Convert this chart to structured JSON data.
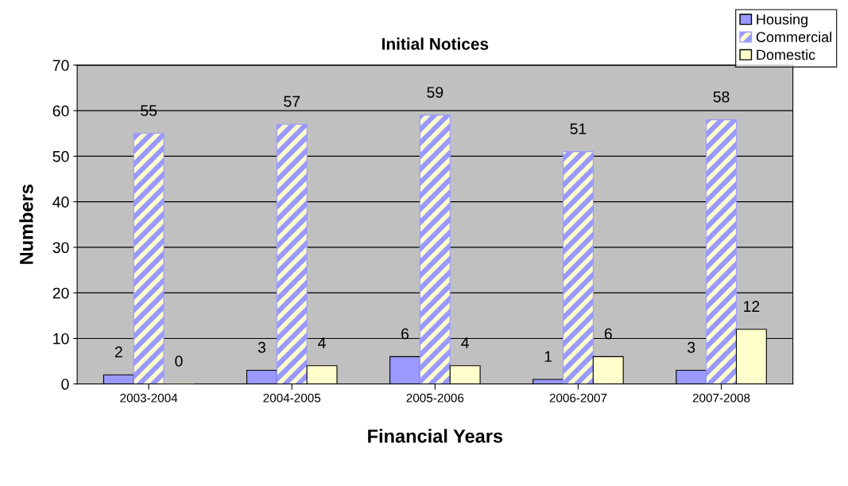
{
  "chart_data": {
    "type": "bar",
    "title": "Initial Notices",
    "xlabel": "Financial Years",
    "ylabel": "Numbers",
    "categories": [
      "2003-2004",
      "2004-2005",
      "2005-2006",
      "2006-2007",
      "2007-2008"
    ],
    "series": [
      {
        "name": "Housing",
        "color": "#9999ff",
        "values": [
          2,
          3,
          6,
          1,
          3
        ]
      },
      {
        "name": "Commercial",
        "color": "#9999ff",
        "values": [
          55,
          57,
          59,
          51,
          58
        ]
      },
      {
        "name": "Domestic",
        "color": "#ffffcc",
        "values": [
          0,
          4,
          4,
          6,
          12
        ]
      }
    ],
    "ylim": [
      0,
      70
    ],
    "yticks": [
      0,
      10,
      20,
      30,
      40,
      50,
      60,
      70
    ],
    "grid": "y",
    "legend": "top right",
    "data_labels": true
  }
}
